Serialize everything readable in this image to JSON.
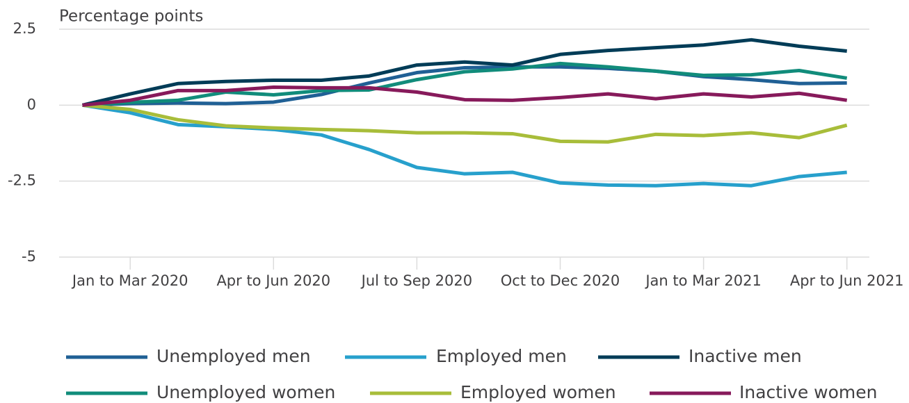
{
  "chart_data": {
    "type": "line",
    "y_label": "Percentage points",
    "categories": [
      null,
      "Jan to Mar 2020",
      null,
      null,
      "Apr to Jun 2020",
      null,
      null,
      "Jul to Sep 2020",
      null,
      null,
      "Oct to Dec 2020",
      null,
      null,
      "Jan to Mar 2021",
      null,
      null,
      "Apr to Jun 2021"
    ],
    "series": [
      {
        "name": "Unemployed men",
        "color": "#206095",
        "values": [
          0,
          0.05,
          0.07,
          0.05,
          0.1,
          0.35,
          0.73,
          1.07,
          1.23,
          1.26,
          1.26,
          1.21,
          1.12,
          0.94,
          0.84,
          0.71,
          0.73
        ]
      },
      {
        "name": "Employed men",
        "color": "#27a0cc",
        "values": [
          0,
          -0.25,
          -0.64,
          -0.71,
          -0.8,
          -0.98,
          -1.46,
          -2.05,
          -2.26,
          -2.21,
          -2.56,
          -2.63,
          -2.65,
          -2.58,
          -2.65,
          -2.35,
          -2.21
        ]
      },
      {
        "name": "Inactive men",
        "color": "#003c57",
        "values": [
          0,
          0.37,
          0.71,
          0.78,
          0.82,
          0.82,
          0.96,
          1.32,
          1.42,
          1.32,
          1.67,
          1.8,
          1.89,
          1.98,
          2.15,
          1.94,
          1.78
        ]
      },
      {
        "name": "Unemployed women",
        "color": "#118c7b",
        "values": [
          0,
          0.09,
          0.16,
          0.43,
          0.34,
          0.48,
          0.5,
          0.84,
          1.1,
          1.19,
          1.37,
          1.26,
          1.12,
          0.98,
          1.0,
          1.14,
          0.89
        ]
      },
      {
        "name": "Employed women",
        "color": "#a8bd3a",
        "values": [
          0,
          -0.14,
          -0.48,
          -0.68,
          -0.75,
          -0.8,
          -0.84,
          -0.91,
          -0.91,
          -0.94,
          -1.19,
          -1.21,
          -0.96,
          -1.0,
          -0.91,
          -1.07,
          -0.66
        ]
      },
      {
        "name": "Inactive women",
        "color": "#871a5b",
        "values": [
          0,
          0.16,
          0.48,
          0.48,
          0.59,
          0.57,
          0.57,
          0.43,
          0.18,
          0.16,
          0.25,
          0.37,
          0.21,
          0.37,
          0.27,
          0.39,
          0.16
        ]
      }
    ],
    "ylim": [
      -5,
      2.5
    ],
    "yticks": [
      -5,
      -2.5,
      0,
      2.5
    ],
    "grid": true,
    "legend": "bottom"
  }
}
